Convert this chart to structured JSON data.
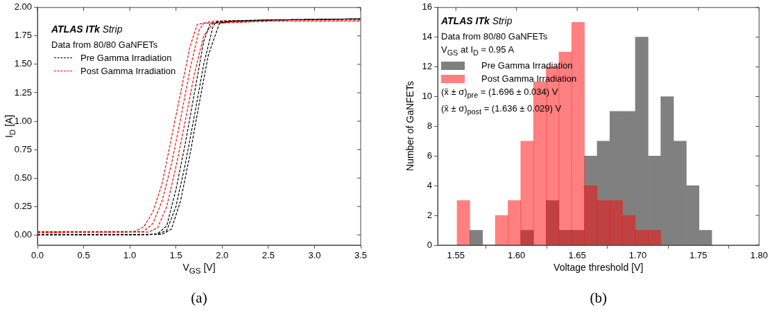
{
  "chart_data": [
    {
      "type": "line",
      "xlabel": "V$_{GS}$ [V]",
      "ylabel": "I$_{D}$ [A]",
      "xlim": [
        0,
        3.5
      ],
      "ylim": [
        -0.09,
        2.0
      ],
      "xticks": [
        {
          "value": 0,
          "label": "0.0"
        },
        0.5,
        {
          "value": 1,
          "label": "1.0"
        },
        1.5,
        {
          "value": 2,
          "label": "2.0"
        },
        2.5,
        {
          "value": 3,
          "label": "3.0"
        },
        3.5
      ],
      "yticks": [
        {
          "value": 0,
          "label": "0.00"
        },
        0.25,
        {
          "value": 0.5,
          "label": "0.50"
        },
        0.75,
        {
          "value": 1,
          "label": "1.00"
        },
        1.25,
        {
          "value": 1.5,
          "label": "1.50"
        },
        1.75,
        {
          "value": 2,
          "label": "2.00"
        }
      ],
      "legend": "top left",
      "line_style": "dashed",
      "annotations": [
        "ATLAS ITk Strip",
        "Data from 80/80 GaNFETs",
        "(a)"
      ],
      "series": [
        {
          "name": "Pre Gamma Irradiation",
          "color": "#000000",
          "x": [
            0,
            1.2,
            1.3,
            1.4,
            1.5,
            1.6,
            1.7,
            1.8,
            1.87,
            2.0,
            2.5,
            3.5
          ],
          "values": [
            0,
            0,
            0.01,
            0.08,
            0.4,
            0.8,
            1.25,
            1.7,
            1.86,
            1.88,
            1.89,
            1.9
          ]
        },
        {
          "color": "#000000",
          "x": [
            0,
            1.3,
            1.4,
            1.5,
            1.6,
            1.7,
            1.8,
            1.9,
            1.93,
            2.5,
            3.5
          ],
          "values": [
            0,
            0.005,
            0.04,
            0.25,
            0.62,
            1.05,
            1.5,
            1.83,
            1.87,
            1.89,
            1.9
          ]
        },
        {
          "color": "#000000",
          "x": [
            0,
            1.35,
            1.45,
            1.55,
            1.65,
            1.75,
            1.85,
            1.97,
            2.1,
            2.5,
            3.5
          ],
          "values": [
            0,
            0.005,
            0.05,
            0.3,
            0.7,
            1.15,
            1.58,
            1.86,
            1.88,
            1.89,
            1.9
          ]
        },
        {
          "name": "Post Gamma Irradiation",
          "color": "#ff0000",
          "x": [
            0,
            1.05,
            1.15,
            1.25,
            1.35,
            1.45,
            1.55,
            1.65,
            1.73,
            1.9,
            2.5,
            3.5
          ],
          "values": [
            0.03,
            0.03,
            0.07,
            0.2,
            0.45,
            0.85,
            1.25,
            1.65,
            1.85,
            1.88,
            1.89,
            1.89
          ]
        },
        {
          "color": "#ff0000",
          "x": [
            0,
            1.15,
            1.25,
            1.35,
            1.45,
            1.55,
            1.65,
            1.75,
            1.8,
            2.5,
            3.5
          ],
          "values": [
            0.02,
            0.03,
            0.1,
            0.3,
            0.62,
            1.02,
            1.45,
            1.8,
            1.86,
            1.88,
            1.88
          ]
        },
        {
          "color": "#ff0000",
          "x": [
            0,
            1.2,
            1.3,
            1.4,
            1.5,
            1.6,
            1.7,
            1.8,
            1.9,
            2.5,
            3.5
          ],
          "values": [
            0.02,
            0.025,
            0.06,
            0.25,
            0.6,
            1.0,
            1.42,
            1.75,
            1.86,
            1.88,
            1.88
          ]
        }
      ]
    },
    {
      "type": "histogram",
      "xlabel": "Voltage threshold [V]",
      "ylabel": "Number of GaNFETs",
      "xlim": [
        1.535,
        1.8
      ],
      "ylim": [
        0,
        16
      ],
      "xticks": [
        1.55,
        {
          "value": 1.6,
          "label": "1.60"
        },
        1.65,
        {
          "value": 1.7,
          "label": "1.70"
        },
        1.75,
        {
          "value": 1.8,
          "label": "1.80"
        }
      ],
      "yticks": [
        0,
        2,
        4,
        6,
        8,
        10,
        12,
        14,
        16
      ],
      "legend": "top left",
      "annotations": [
        "ATLAS ITk Strip",
        "Data from 80/80 GaNFETs",
        "V$_{GS}$ at I$_{D}$ ≈ 0.95 A",
        "(x̄ ± σ)$_{pre}$ = (1.696 ± 0.034) V",
        "(x̄ ± σ)$_{post}$ = (1.636 ± 0.029) V",
        "(b)"
      ],
      "bins": [
        1.551,
        1.5615,
        1.572,
        1.5825,
        1.593,
        1.6035,
        1.614,
        1.6245,
        1.635,
        1.6455,
        1.656,
        1.6665,
        1.677,
        1.6875,
        1.698,
        1.7085,
        1.719,
        1.7295,
        1.74,
        1.7505,
        1.761
      ],
      "series": [
        {
          "name": "Pre Gamma Irradiation",
          "color": "#808080",
          "values": [
            0,
            1,
            0,
            0,
            0,
            1,
            0,
            3,
            1,
            1,
            6,
            7,
            9,
            9,
            14,
            6,
            10,
            7,
            4,
            1
          ]
        },
        {
          "name": "Post Gamma Irradiation",
          "color": "#ff8080",
          "values": [
            3,
            0,
            0,
            2,
            3,
            7,
            11,
            12,
            13,
            15,
            4,
            3,
            3,
            2,
            1,
            1,
            0,
            0,
            0,
            0
          ]
        }
      ]
    }
  ]
}
